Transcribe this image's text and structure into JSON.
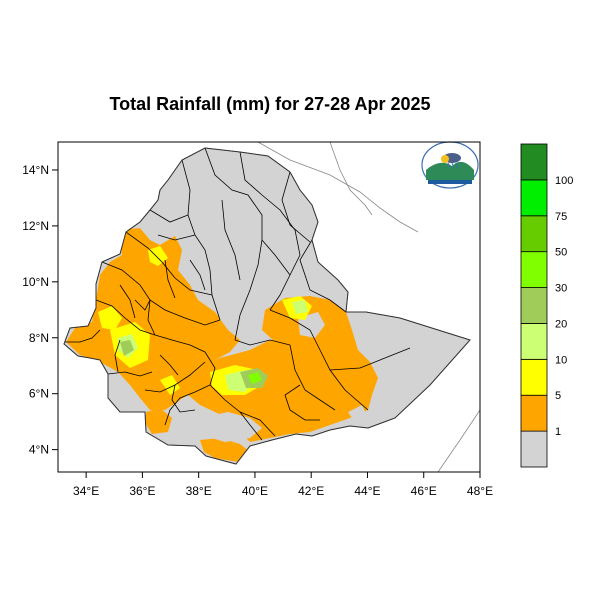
{
  "title": "Total Rainfall (mm) for 27-28 Apr 2025",
  "map": {
    "lon_range": [
      33,
      48
    ],
    "lat_range": [
      3.2,
      15
    ],
    "x_ticks": [
      "34°E",
      "36°E",
      "38°E",
      "40°E",
      "42°E",
      "44°E",
      "46°E",
      "48°E"
    ],
    "x_tick_values": [
      34,
      36,
      38,
      40,
      42,
      44,
      46,
      48
    ],
    "y_ticks": [
      "4°N",
      "6°N",
      "8°N",
      "10°N",
      "12°N",
      "14°N"
    ],
    "y_tick_values": [
      4,
      6,
      8,
      10,
      12,
      14
    ],
    "country_fill": "#d3d3d3",
    "logo_icon": "ethiopian-meteorology-institute-logo"
  },
  "colorbar": {
    "labels": [
      "1",
      "5",
      "10",
      "20",
      "30",
      "50",
      "75",
      "100"
    ],
    "colors": [
      "#d3d3d3",
      "#ffa500",
      "#ffff00",
      "#ccff73",
      "#a0cc5a",
      "#80ff00",
      "#66cc00",
      "#00ee00",
      "#228b22"
    ]
  }
}
